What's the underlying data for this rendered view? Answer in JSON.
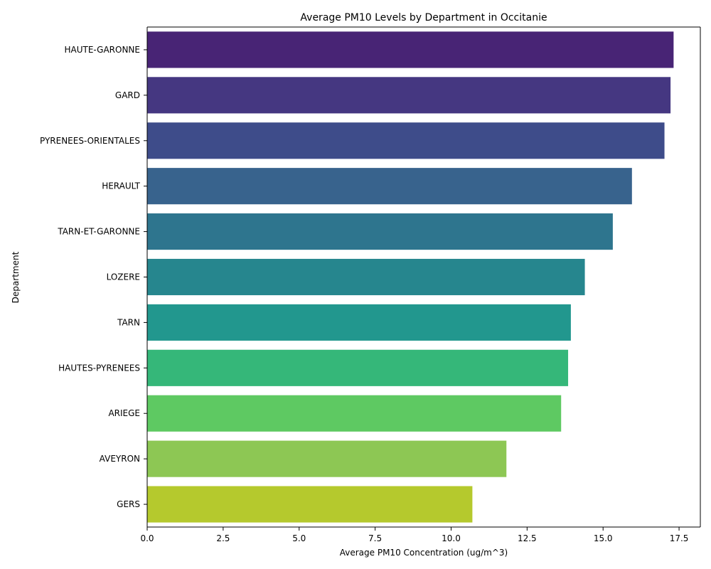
{
  "chart_data": {
    "type": "bar",
    "orientation": "horizontal",
    "title": "Average PM10 Levels by Department in Occitanie",
    "xlabel": "Average PM10 Concentration (ug/m^3)",
    "ylabel": "Department",
    "xlim": [
      0,
      18.2
    ],
    "xticks": [
      0,
      2.5,
      5,
      7.5,
      10,
      12.5,
      15,
      17.5
    ],
    "xtick_labels": [
      "0.0",
      "2.5",
      "5.0",
      "7.5",
      "10.0",
      "12.5",
      "15.0",
      "17.5"
    ],
    "grid": false,
    "categories": [
      "HAUTE-GARONNE",
      "GARD",
      "PYRENEES-ORIENTALES",
      "HERAULT",
      "TARN-ET-GARONNE",
      "LOZERE",
      "TARN",
      "HAUTES-PYRENEES",
      "ARIEGE",
      "AVEYRON",
      "GERS"
    ],
    "values": [
      17.32,
      17.22,
      17.02,
      15.95,
      15.32,
      14.4,
      13.94,
      13.85,
      13.62,
      11.82,
      10.7
    ],
    "colors": [
      "#482475",
      "#453781",
      "#3e4c8a",
      "#38638d",
      "#2e758e",
      "#26868e",
      "#22978e",
      "#35b779",
      "#5ec962",
      "#8dc754",
      "#b5c92d"
    ]
  }
}
